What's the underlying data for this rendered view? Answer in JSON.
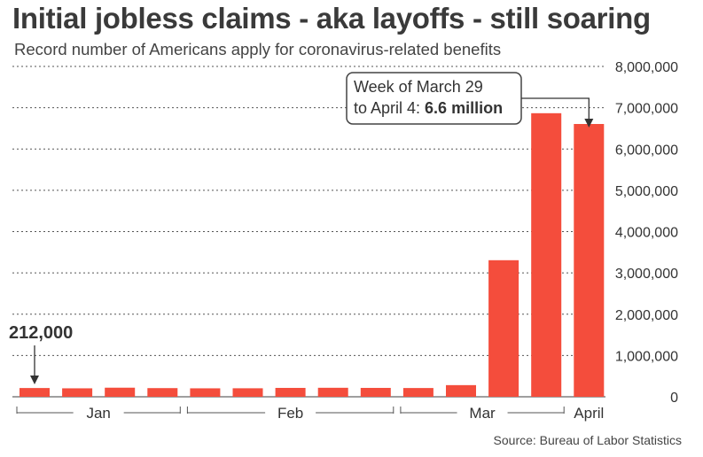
{
  "header": {
    "title": "Initial jobless claims - aka layoffs - still soaring",
    "subtitle": "Record number of Americans apply for coronavirus-related benefits"
  },
  "source": "Source: Bureau of Labor Statistics",
  "chart_data": {
    "type": "bar",
    "title": "Initial jobless claims - aka layoffs - still soaring",
    "subtitle": "Record number of Americans apply for coronavirus-related benefits",
    "xlabel": "",
    "ylabel": "",
    "ylim": [
      0,
      8000000
    ],
    "y_axis_side": "right",
    "grid": "horizontal dotted",
    "bar_color": "#f44d3c",
    "values": [
      212000,
      205000,
      220000,
      210000,
      205000,
      206000,
      215000,
      218000,
      215000,
      212000,
      282000,
      3307000,
      6867000,
      6606000
    ],
    "y_ticks": [
      {
        "value": 0,
        "label": "0"
      },
      {
        "value": 1000000,
        "label": "1,000,000"
      },
      {
        "value": 2000000,
        "label": "2,000,000"
      },
      {
        "value": 3000000,
        "label": "3,000,000"
      },
      {
        "value": 4000000,
        "label": "4,000,000"
      },
      {
        "value": 5000000,
        "label": "5,000,000"
      },
      {
        "value": 6000000,
        "label": "6,000,000"
      },
      {
        "value": 7000000,
        "label": "7,000,000"
      },
      {
        "value": 8000000,
        "label": "8,000,000"
      }
    ],
    "month_groups": [
      {
        "label": "Jan",
        "first": 0,
        "last": 3
      },
      {
        "label": "Feb",
        "first": 4,
        "last": 8
      },
      {
        "label": "Mar",
        "first": 9,
        "last": 12
      },
      {
        "label": "April",
        "first": 13,
        "last": 13
      }
    ],
    "annotations": [
      {
        "bar": 0,
        "text": "212,000"
      },
      {
        "bar": 13,
        "line1": "Week of March 29",
        "line2_prefix": "to April 4: ",
        "line2_bold": "6.6 million"
      }
    ]
  }
}
